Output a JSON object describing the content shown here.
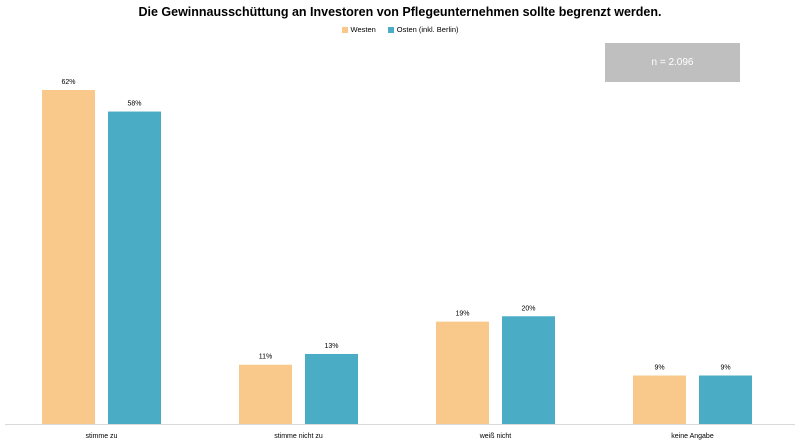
{
  "chart_data": {
    "type": "bar",
    "title": "Die Gewinnausschüttung an Investoren von Pflegeunternehmen sollte begrenzt werden.",
    "categories": [
      "stimme zu",
      "stimme nicht zu",
      "weiß nicht",
      "keine Angabe"
    ],
    "series": [
      {
        "name": "Westen",
        "values": [
          62,
          11,
          19,
          9
        ],
        "labels": [
          "62%",
          "11%",
          "19%",
          "9%"
        ],
        "color": "#f8c98a"
      },
      {
        "name": "Osten (inkl. Berlin)",
        "values": [
          58,
          13,
          20,
          9
        ],
        "labels": [
          "58%",
          "13%",
          "20%",
          "9%"
        ],
        "color": "#4bacc6"
      }
    ],
    "ylim": [
      0,
      64
    ],
    "grid": false,
    "legend_position": "top-center",
    "annotation": "n = 2.096"
  }
}
